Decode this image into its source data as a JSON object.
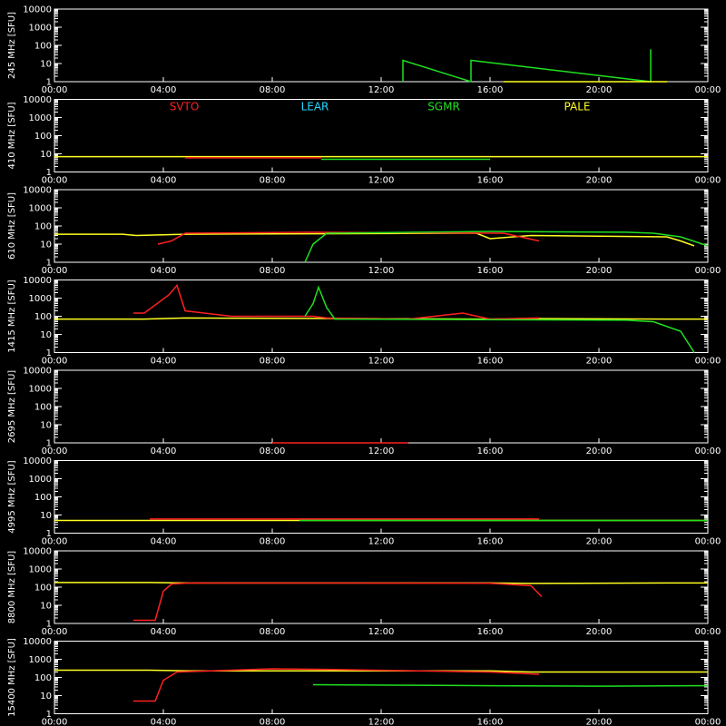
{
  "chart_data": {
    "type": "line",
    "time_ticks": [
      "00:00",
      "04:00",
      "08:00",
      "12:00",
      "16:00",
      "20:00",
      "00:00"
    ],
    "y_tick_labels": [
      "10000",
      "1000",
      "100",
      "10",
      "1"
    ],
    "ylim": [
      1,
      10000
    ],
    "y_scale": "log",
    "xlim_hours": [
      0,
      24
    ],
    "colors": {
      "SVTO": "#ff2020",
      "LEAR": "#20d8ff",
      "SGMR": "#20e020",
      "PALE": "#ffff20"
    },
    "station_legend": [
      {
        "name": "SVTO",
        "color": "#ff2020"
      },
      {
        "name": "LEAR",
        "color": "#20d8ff"
      },
      {
        "name": "SGMR",
        "color": "#20e020"
      },
      {
        "name": "PALE",
        "color": "#ffff20"
      }
    ],
    "panels": [
      {
        "ylabel": "245 MHz [SFU]",
        "series": [
          {
            "station": "SGMR",
            "points": [
              [
                12.8,
                1
              ],
              [
                12.8,
                15
              ],
              [
                15.3,
                1
              ],
              [
                15.3,
                15
              ],
              [
                21.9,
                1
              ],
              [
                21.9,
                60
              ]
            ]
          },
          {
            "station": "PALE",
            "points": [
              [
                16.5,
                1
              ],
              [
                22.5,
                1
              ]
            ]
          }
        ]
      },
      {
        "ylabel": "410 MHz [SFU]",
        "series": [
          {
            "station": "PALE",
            "points": [
              [
                0,
                7
              ],
              [
                4.8,
                7
              ],
              [
                16,
                7
              ],
              [
                24,
                7
              ]
            ]
          },
          {
            "station": "SVTO",
            "points": [
              [
                4.8,
                6
              ],
              [
                9.8,
                6
              ]
            ]
          },
          {
            "station": "SGMR",
            "points": [
              [
                9.8,
                5
              ],
              [
                16,
                5
              ]
            ]
          }
        ]
      },
      {
        "ylabel": "610 MHz [SFU]",
        "series": [
          {
            "station": "PALE",
            "points": [
              [
                0,
                35
              ],
              [
                2.5,
                35
              ],
              [
                3,
                30
              ],
              [
                4.8,
                35
              ],
              [
                15.5,
                40
              ],
              [
                16,
                20
              ],
              [
                17.5,
                30
              ],
              [
                22.5,
                25
              ],
              [
                23,
                15
              ],
              [
                23.5,
                8
              ]
            ]
          },
          {
            "station": "SVTO",
            "points": [
              [
                3.8,
                10
              ],
              [
                4.3,
                15
              ],
              [
                4.8,
                40
              ],
              [
                9.5,
                45
              ],
              [
                16.5,
                40
              ],
              [
                17.8,
                15
              ]
            ]
          },
          {
            "station": "SGMR",
            "points": [
              [
                9.2,
                1
              ],
              [
                9.5,
                10
              ],
              [
                10,
                40
              ],
              [
                16,
                50
              ],
              [
                21,
                45
              ],
              [
                22,
                40
              ],
              [
                23,
                25
              ],
              [
                24,
                8
              ]
            ]
          }
        ]
      },
      {
        "ylabel": "1415 MHz [SFU]",
        "series": [
          {
            "station": "PALE",
            "points": [
              [
                0,
                70
              ],
              [
                3.3,
                70
              ],
              [
                4.8,
                80
              ],
              [
                16,
                70
              ],
              [
                17.5,
                75
              ],
              [
                22.5,
                70
              ],
              [
                24,
                70
              ]
            ]
          },
          {
            "station": "SVTO",
            "points": [
              [
                2.9,
                150
              ],
              [
                3.3,
                150
              ],
              [
                4.2,
                1500
              ],
              [
                4.5,
                5000
              ],
              [
                4.8,
                200
              ],
              [
                5.5,
                150
              ],
              [
                6.5,
                100
              ],
              [
                9.5,
                100
              ],
              [
                10,
                80
              ],
              [
                13,
                70
              ],
              [
                15,
                150
              ],
              [
                16,
                70
              ],
              [
                17.8,
                80
              ]
            ]
          },
          {
            "station": "SGMR",
            "points": [
              [
                9.2,
                100
              ],
              [
                9.5,
                500
              ],
              [
                9.7,
                4000
              ],
              [
                10,
                300
              ],
              [
                10.3,
                70
              ],
              [
                16,
                65
              ],
              [
                21,
                60
              ],
              [
                22,
                50
              ],
              [
                23,
                15
              ],
              [
                23.5,
                1
              ]
            ]
          }
        ]
      },
      {
        "ylabel": "2695 MHz [SFU]",
        "series": [
          {
            "station": "SVTO",
            "points": [
              [
                8,
                1
              ],
              [
                13,
                1
              ]
            ]
          }
        ]
      },
      {
        "ylabel": "4995 MHz [SFU]",
        "series": [
          {
            "station": "PALE",
            "points": [
              [
                0,
                5
              ],
              [
                4.8,
                5
              ],
              [
                16,
                5
              ],
              [
                24,
                5
              ]
            ]
          },
          {
            "station": "SVTO",
            "points": [
              [
                3.5,
                6
              ],
              [
                9.5,
                6
              ],
              [
                17.8,
                6
              ]
            ]
          },
          {
            "station": "SGMR",
            "points": [
              [
                9,
                5
              ],
              [
                16,
                5
              ],
              [
                24,
                5
              ]
            ]
          }
        ]
      },
      {
        "ylabel": "8800 MHz [SFU]",
        "series": [
          {
            "station": "PALE",
            "points": [
              [
                0,
                180
              ],
              [
                3.5,
                180
              ],
              [
                4.8,
                170
              ],
              [
                16,
                170
              ],
              [
                17.5,
                160
              ],
              [
                22.5,
                170
              ],
              [
                24,
                170
              ]
            ]
          },
          {
            "station": "SVTO",
            "points": [
              [
                2.9,
                1.5
              ],
              [
                3.7,
                1.5
              ],
              [
                4,
                60
              ],
              [
                4.3,
                150
              ],
              [
                5,
                170
              ],
              [
                16,
                165
              ],
              [
                17.5,
                120
              ],
              [
                17.9,
                30
              ]
            ]
          }
        ]
      },
      {
        "ylabel": "15400 MHz [SFU]",
        "series": [
          {
            "station": "PALE",
            "points": [
              [
                0,
                250
              ],
              [
                3.5,
                250
              ],
              [
                5,
                230
              ],
              [
                16,
                230
              ],
              [
                17.5,
                200
              ],
              [
                22.5,
                200
              ],
              [
                24,
                200
              ]
            ]
          },
          {
            "station": "SVTO",
            "points": [
              [
                2.9,
                5
              ],
              [
                3.7,
                5
              ],
              [
                4,
                70
              ],
              [
                4.5,
                200
              ],
              [
                8,
                300
              ],
              [
                10,
                280
              ],
              [
                16,
                200
              ],
              [
                17.8,
                150
              ]
            ]
          },
          {
            "station": "SGMR",
            "points": [
              [
                9.5,
                40
              ],
              [
                16,
                35
              ],
              [
                20,
                33
              ],
              [
                24,
                35
              ]
            ]
          }
        ]
      }
    ]
  }
}
